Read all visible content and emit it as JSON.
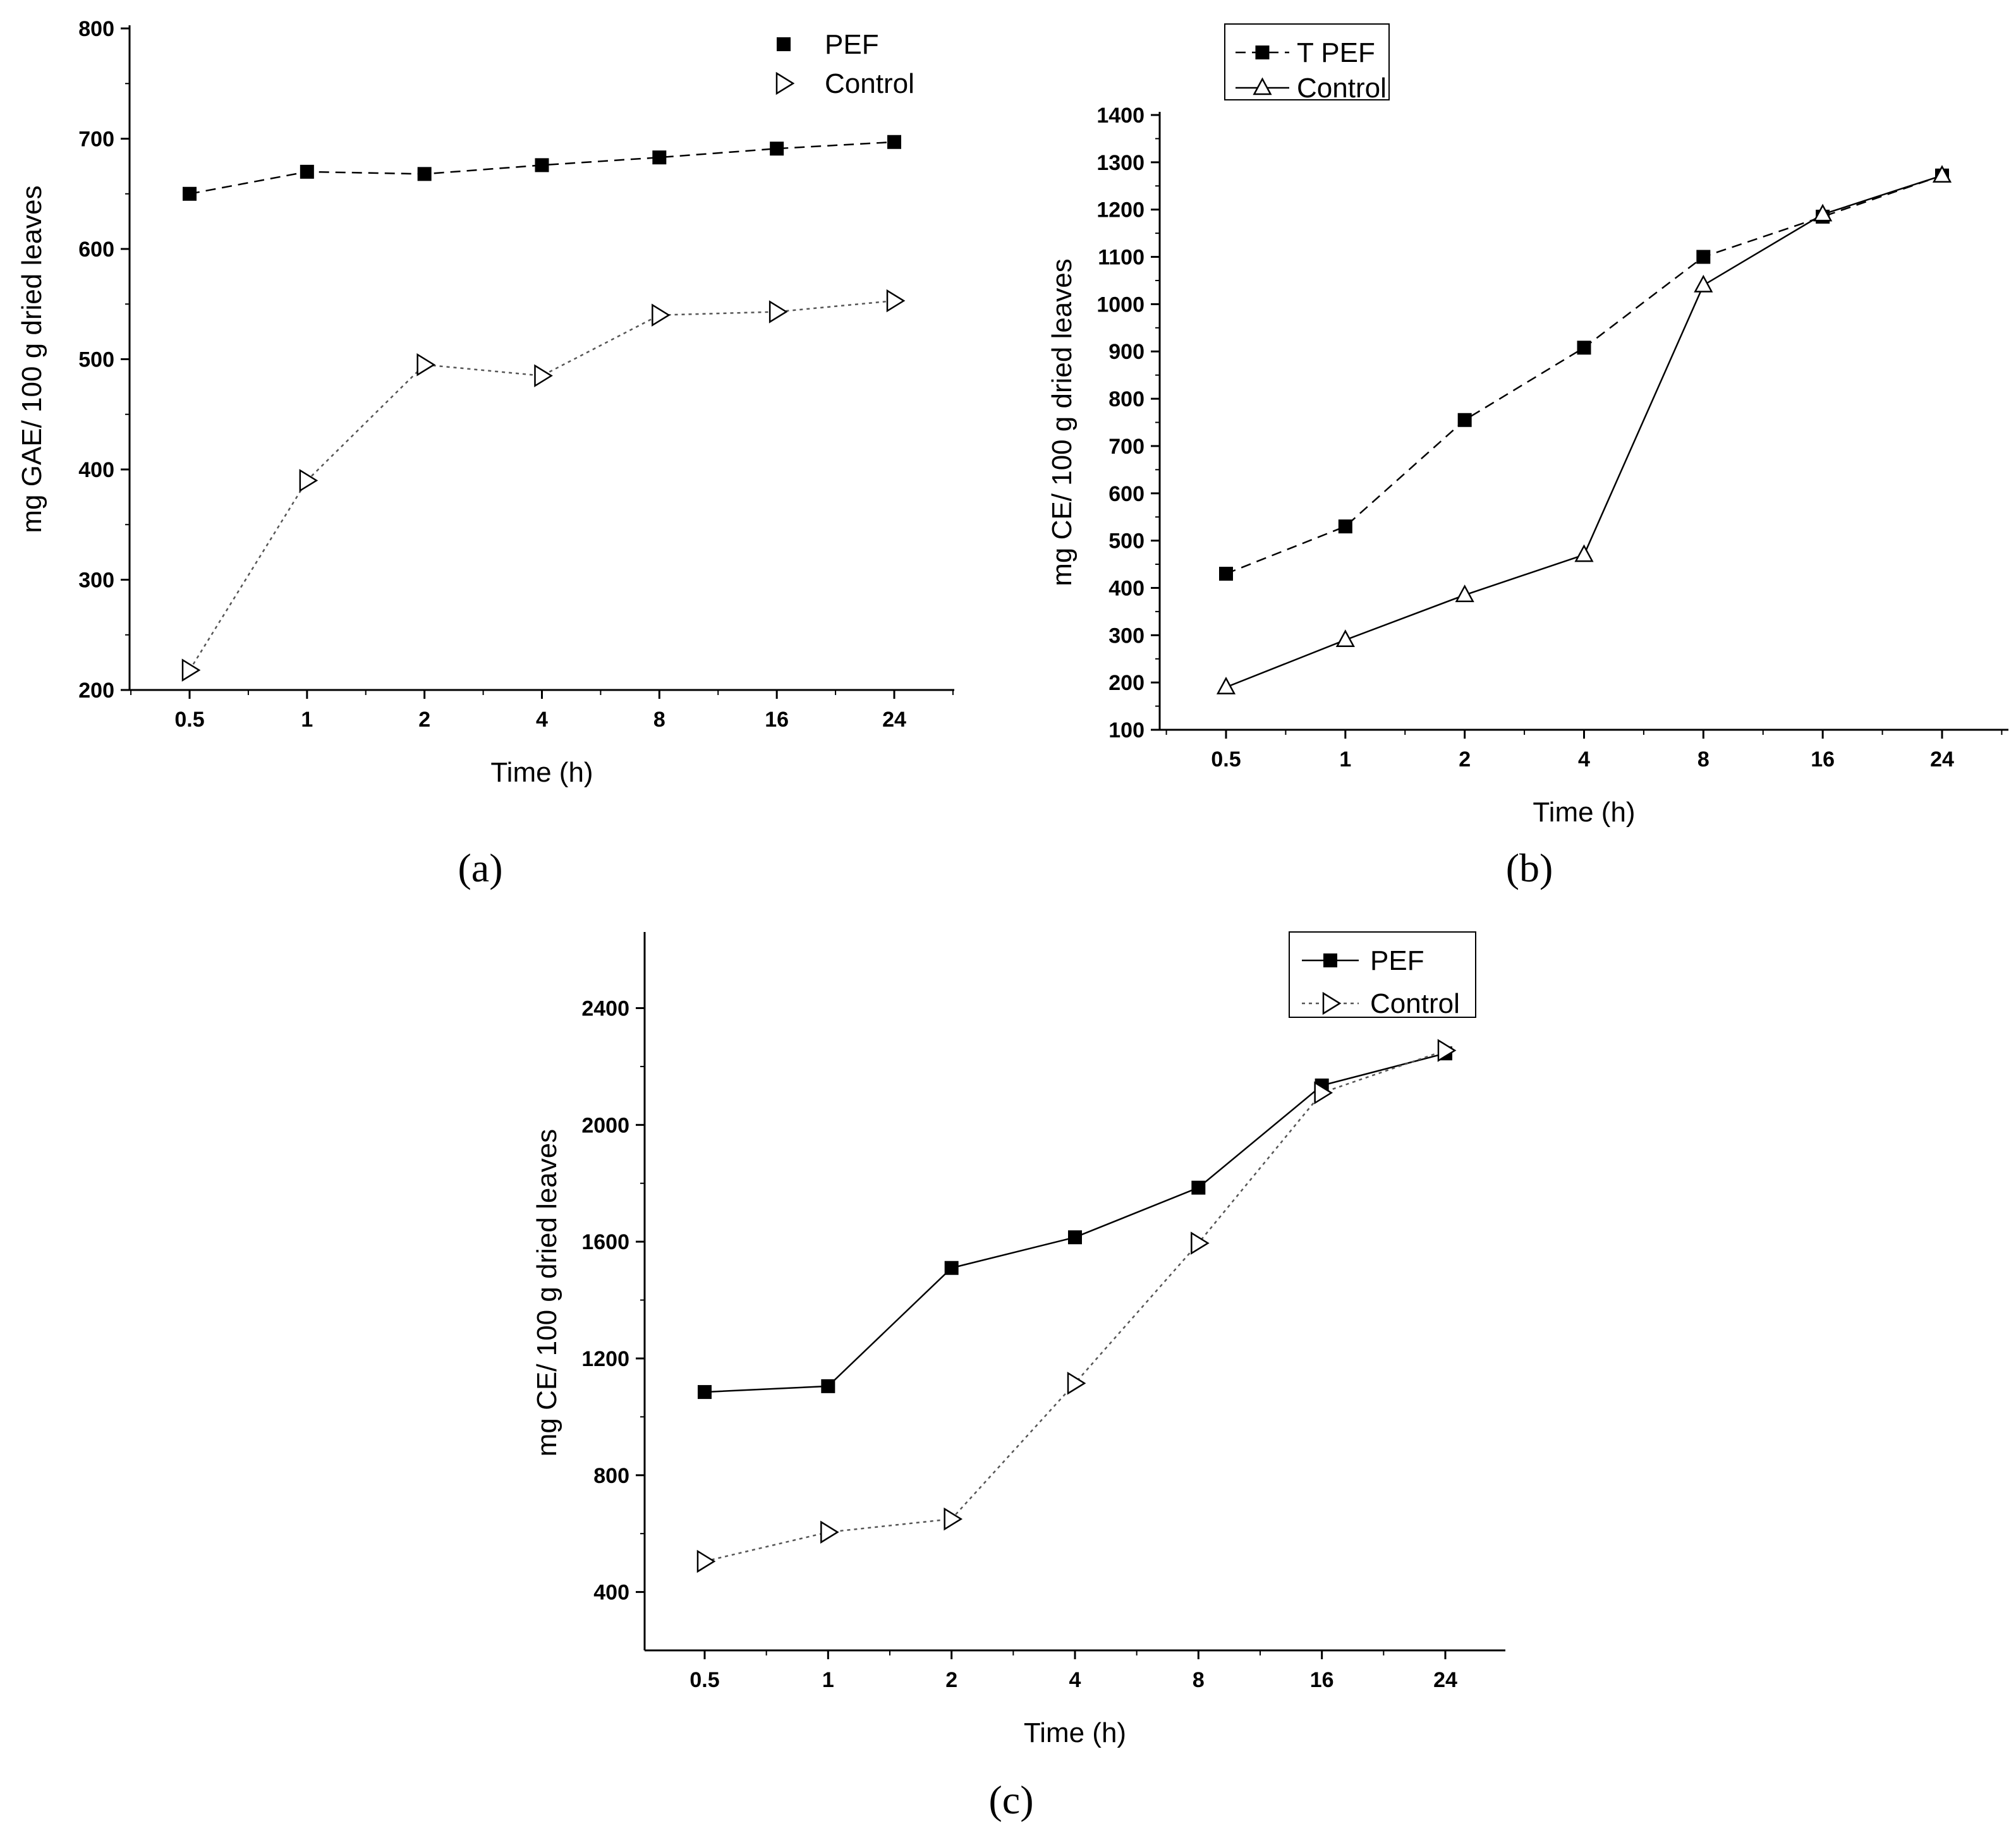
{
  "chart_data": [
    {
      "type": "line",
      "panel_label": "(a)",
      "xlabel": "Time (h)",
      "ylabel": "mg GAE/ 100 g dried leaves",
      "categories": [
        "0.5",
        "1",
        "2",
        "4",
        "8",
        "16",
        "24"
      ],
      "ylim": [
        200,
        800
      ],
      "yticks": [
        200,
        300,
        400,
        500,
        600,
        700,
        800
      ],
      "legend_position": "top-right",
      "legend_box": false,
      "series": [
        {
          "name": "PEF",
          "values": [
            650,
            670,
            668,
            676,
            683,
            691,
            697
          ],
          "marker": "square",
          "line": "dashed",
          "color": "#000000"
        },
        {
          "name": "Control",
          "values": [
            218,
            390,
            495,
            485,
            540,
            543,
            553
          ],
          "marker": "triangle-right",
          "line": "dotted",
          "color": "#555555"
        }
      ]
    },
    {
      "type": "line",
      "panel_label": "(b)",
      "xlabel": "Time (h)",
      "ylabel": "mg CE/ 100 g dried leaves",
      "categories": [
        "0.5",
        "1",
        "2",
        "4",
        "8",
        "16",
        "24"
      ],
      "ylim": [
        100,
        1400
      ],
      "yticks": [
        100,
        200,
        300,
        400,
        500,
        600,
        700,
        800,
        900,
        1000,
        1100,
        1200,
        1300,
        1400
      ],
      "legend_position": "top-left",
      "legend_box": true,
      "series": [
        {
          "name": "T PEF",
          "values": [
            430,
            530,
            755,
            908,
            1100,
            1185,
            1272
          ],
          "marker": "square",
          "line": "dashed",
          "color": "#000000"
        },
        {
          "name": "Control",
          "values": [
            190,
            290,
            385,
            470,
            1040,
            1190,
            1272
          ],
          "marker": "triangle-up",
          "line": "solid",
          "color": "#000000"
        }
      ]
    },
    {
      "type": "line",
      "panel_label": "(c)",
      "xlabel": "Time (h)",
      "ylabel": "mg CE/ 100 g dried leaves",
      "categories": [
        "0.5",
        "1",
        "2",
        "4",
        "8",
        "16",
        "24"
      ],
      "ylim": [
        200,
        2650
      ],
      "yticks": [
        400,
        800,
        1200,
        1600,
        2000,
        2400
      ],
      "legend_position": "top-right",
      "legend_box": true,
      "series": [
        {
          "name": "PEF",
          "values": [
            1085,
            1105,
            1510,
            1615,
            1785,
            2135,
            2245
          ],
          "marker": "square",
          "line": "solid",
          "color": "#000000"
        },
        {
          "name": "Control",
          "values": [
            505,
            605,
            650,
            1115,
            1595,
            2110,
            2255
          ],
          "marker": "triangle-right",
          "line": "dotted",
          "color": "#555555"
        }
      ]
    }
  ]
}
